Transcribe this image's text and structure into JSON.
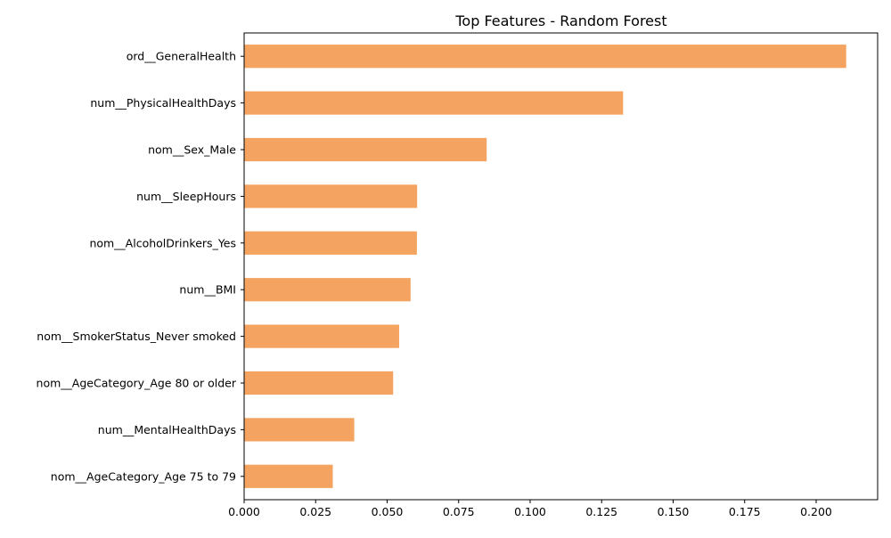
{
  "chart_data": {
    "type": "bar",
    "orientation": "horizontal",
    "title": "Top Features - Random Forest",
    "xlabel": "",
    "ylabel": "",
    "categories": [
      "ord__GeneralHealth",
      "num__PhysicalHealthDays",
      "nom__Sex_Male",
      "num__SleepHours",
      "nom__AlcoholDrinkers_Yes",
      "num__BMI",
      "nom__SmokerStatus_Never smoked",
      "nom__AgeCategory_Age 80 or older",
      "num__MentalHealthDays",
      "nom__AgeCategory_Age 75 to 79"
    ],
    "values": [
      0.2105,
      0.1325,
      0.0848,
      0.0605,
      0.0604,
      0.0582,
      0.0542,
      0.0521,
      0.0385,
      0.031
    ],
    "xlim": [
      0,
      0.2215
    ],
    "xticks": [
      "0.000",
      "0.025",
      "0.050",
      "0.075",
      "0.100",
      "0.125",
      "0.150",
      "0.175",
      "0.200"
    ],
    "grid": false,
    "legend": "none",
    "colors": {
      "bar": "#f4a460",
      "axis": "#000000"
    }
  }
}
